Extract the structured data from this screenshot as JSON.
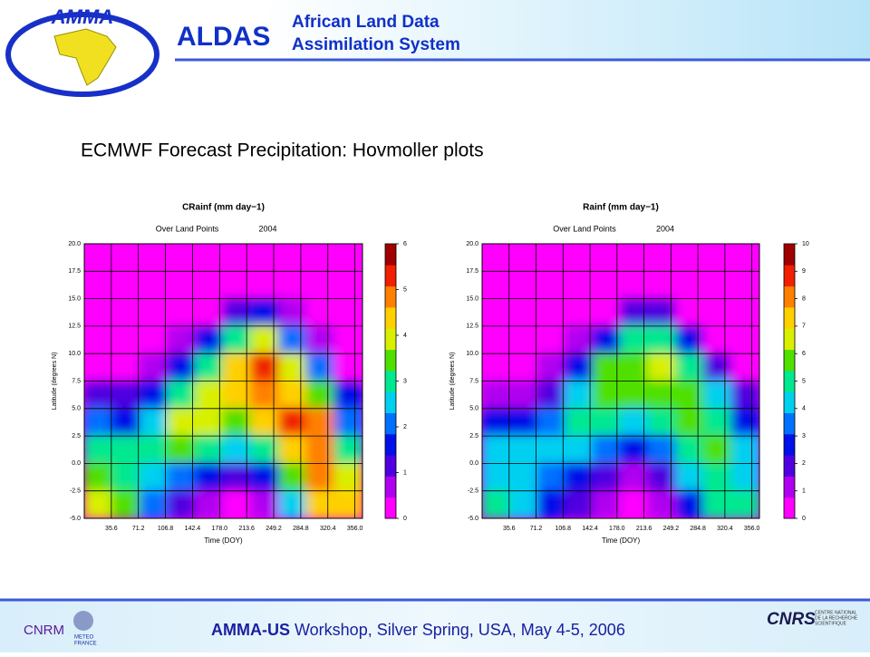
{
  "header": {
    "logo": "AMMA",
    "acronym": "ALDAS",
    "line1": "African Land Data",
    "line2": "Assimilation System"
  },
  "slide_title": "ECMWF Forecast Precipitation: Hovmoller plots",
  "chart_data": [
    {
      "type": "heatmap",
      "title": "CRainf (mm day−1)",
      "subtitle": "Over Land Points",
      "year": "2004",
      "x_label": "Time (DOY)",
      "y_label": "Latitude (degrees N)",
      "x": [
        18,
        55,
        92,
        128,
        165,
        201,
        238,
        275,
        311,
        348
      ],
      "y": [
        18.75,
        16.25,
        13.75,
        11.25,
        8.75,
        6.25,
        3.75,
        1.25,
        -1.25,
        -3.75
      ],
      "values": [
        [
          0,
          0,
          0,
          0,
          0,
          0,
          0,
          0,
          0,
          0
        ],
        [
          0,
          0,
          0,
          0,
          0,
          0.3,
          0.3,
          0,
          0,
          0
        ],
        [
          0,
          0,
          0,
          0,
          0.3,
          1,
          1.5,
          0.5,
          0,
          0
        ],
        [
          0,
          0,
          0,
          0.5,
          1.5,
          3,
          4,
          2,
          0.5,
          0
        ],
        [
          0,
          0,
          0.5,
          1.5,
          3,
          4.5,
          5.5,
          4,
          2,
          0.3
        ],
        [
          1,
          1,
          1.5,
          3,
          4,
          4.5,
          5,
          4.5,
          3.5,
          1.5
        ],
        [
          2,
          1.5,
          2.5,
          4,
          4,
          3.5,
          4.5,
          5.5,
          5,
          2
        ],
        [
          3,
          3,
          3,
          3.5,
          3,
          2.5,
          3,
          4.5,
          5,
          3
        ],
        [
          3.5,
          3,
          2.5,
          2,
          1.5,
          1,
          1.5,
          3.5,
          5,
          4
        ],
        [
          4,
          3.5,
          2,
          1,
          0.5,
          0.3,
          0.5,
          2.5,
          4.5,
          4.5
        ]
      ],
      "xlim": [
        0,
        366
      ],
      "ylim": [
        -5,
        20
      ],
      "xticks": [
        35.6,
        71.2,
        106.8,
        142.4,
        {
          "value": 178,
          "label": "178.0"
        },
        213.6,
        249.2,
        284.8,
        320.4,
        {
          "value": 356,
          "label": "356.0"
        }
      ],
      "yticks": [
        {
          "value": 20,
          "label": "20.0"
        },
        17.5,
        {
          "value": 15,
          "label": "15.0"
        },
        12.5,
        {
          "value": 10,
          "label": "10.0"
        },
        7.5,
        {
          "value": 5,
          "label": "5.0"
        },
        2.5,
        {
          "value": 0,
          "label": "0.0"
        },
        -2.5,
        {
          "value": -5,
          "label": "-5.0"
        }
      ],
      "clim": [
        0,
        6
      ],
      "cticks": [
        0,
        1,
        2,
        3,
        4,
        5,
        6
      ],
      "grid": true,
      "colormap": [
        "#ff00ff",
        "#b000f0",
        "#5000e0",
        "#0010e8",
        "#0070ff",
        "#00d0f0",
        "#00e890",
        "#50e000",
        "#d8f000",
        "#ffd000",
        "#ff8000",
        "#f02000",
        "#a00000"
      ]
    },
    {
      "type": "heatmap",
      "title": "Rainf (mm day−1)",
      "subtitle": "Over Land Points",
      "year": "2004",
      "x_label": "Time (DOY)",
      "y_label": "Latitude (degrees N)",
      "x": [
        18,
        55,
        92,
        128,
        165,
        201,
        238,
        275,
        311,
        348
      ],
      "y": [
        18.75,
        16.25,
        13.75,
        11.25,
        8.75,
        6.25,
        3.75,
        1.25,
        -1.25,
        -3.75
      ],
      "values": [
        [
          0,
          0,
          0,
          0,
          0,
          0,
          0,
          0,
          0,
          0
        ],
        [
          0,
          0,
          0,
          0,
          0,
          0.5,
          0.5,
          0,
          0,
          0
        ],
        [
          0,
          0,
          0,
          0,
          0.5,
          2,
          2,
          0.5,
          0,
          0
        ],
        [
          0,
          0,
          0,
          1,
          3,
          5,
          5,
          2.5,
          0.5,
          0
        ],
        [
          0,
          0,
          1,
          3,
          5.5,
          6,
          6.5,
          5,
          2,
          0.5
        ],
        [
          1.5,
          1.5,
          2,
          4,
          5.5,
          6,
          6,
          5.5,
          4,
          2
        ],
        [
          3,
          3,
          3.5,
          5,
          5,
          4.5,
          5,
          6,
          5,
          3
        ],
        [
          4,
          4,
          4,
          4.5,
          3.5,
          3,
          3.5,
          5,
          5.5,
          4
        ],
        [
          4.5,
          4,
          3.5,
          2.5,
          2,
          1.5,
          2,
          4,
          5,
          4.5
        ],
        [
          5,
          4.5,
          3,
          2,
          1,
          0.5,
          1,
          3,
          5,
          5
        ]
      ],
      "xlim": [
        0,
        366
      ],
      "ylim": [
        -5,
        20
      ],
      "xticks": [
        35.6,
        71.2,
        106.8,
        142.4,
        {
          "value": 178,
          "label": "178.0"
        },
        213.6,
        249.2,
        284.8,
        320.4,
        {
          "value": 356,
          "label": "356.0"
        }
      ],
      "yticks": [
        {
          "value": 20,
          "label": "20.0"
        },
        17.5,
        {
          "value": 15,
          "label": "15.0"
        },
        12.5,
        {
          "value": 10,
          "label": "10.0"
        },
        7.5,
        {
          "value": 5,
          "label": "5.0"
        },
        2.5,
        {
          "value": 0,
          "label": "0.0"
        },
        -2.5,
        {
          "value": -5,
          "label": "-5.0"
        }
      ],
      "clim": [
        0,
        10
      ],
      "cticks": [
        0,
        1,
        2,
        3,
        4,
        5,
        6,
        7,
        8,
        9,
        10
      ],
      "grid": true,
      "colormap": [
        "#ff00ff",
        "#b000f0",
        "#5000e0",
        "#0010e8",
        "#0070ff",
        "#00d0f0",
        "#00e890",
        "#50e000",
        "#d8f000",
        "#ffd000",
        "#ff8000",
        "#f02000",
        "#a00000"
      ]
    }
  ],
  "footer": {
    "bold": "AMMA-US",
    "text": "Workshop, Silver Spring, USA, May 4-5, 2006",
    "left_logo": "CNRM",
    "left_logo_sub1": "METEO",
    "left_logo_sub2": "FRANCE",
    "right_logo": "CNRS",
    "right_logo_sub1": "CENTRE NATIONAL",
    "right_logo_sub2": "DE LA RECHERCHE",
    "right_logo_sub3": "SCIENTIFIQUE"
  }
}
